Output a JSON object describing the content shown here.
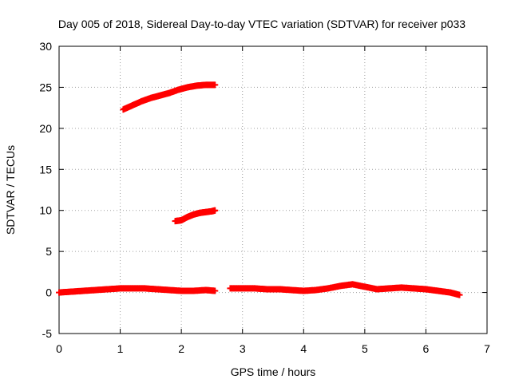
{
  "chart_data": {
    "type": "scatter",
    "title": "Day 005 of 2018, Sidereal Day-to-day VTEC variation (SDTVAR) for receiver p033",
    "xlabel": "GPS time / hours",
    "ylabel": "SDTVAR / TECUs",
    "xlim": [
      0,
      7
    ],
    "ylim": [
      -5,
      30
    ],
    "xticks": [
      "0",
      "1",
      "2",
      "3",
      "4",
      "5",
      "6",
      "7"
    ],
    "yticks": [
      "-5",
      "0",
      "5",
      "10",
      "15",
      "20",
      "25",
      "30"
    ],
    "grid": true,
    "legend": "none",
    "marker": "plus",
    "color": "#ff0000",
    "series": [
      {
        "x": [
          0.0,
          0.2,
          0.4,
          0.6,
          0.8,
          1.0,
          1.2,
          1.4,
          1.6,
          1.8,
          2.0,
          2.2,
          2.4,
          2.55
        ],
        "y": [
          0.0,
          0.1,
          0.2,
          0.3,
          0.4,
          0.5,
          0.5,
          0.5,
          0.4,
          0.3,
          0.2,
          0.2,
          0.3,
          0.2
        ]
      },
      {
        "x": [
          2.8,
          3.0,
          3.2,
          3.4,
          3.6,
          3.8,
          4.0,
          4.2,
          4.4,
          4.6,
          4.8,
          5.0,
          5.2,
          5.4,
          5.6,
          5.8,
          6.0,
          6.2,
          6.4,
          6.55
        ],
        "y": [
          0.5,
          0.5,
          0.5,
          0.4,
          0.4,
          0.3,
          0.2,
          0.3,
          0.5,
          0.8,
          1.0,
          0.7,
          0.4,
          0.5,
          0.6,
          0.5,
          0.4,
          0.2,
          0.0,
          -0.3
        ]
      },
      {
        "x": [
          1.05,
          1.2,
          1.35,
          1.5,
          1.65,
          1.8,
          1.95,
          2.1,
          2.25,
          2.4,
          2.55
        ],
        "y": [
          22.3,
          22.8,
          23.3,
          23.7,
          24.0,
          24.3,
          24.7,
          25.0,
          25.2,
          25.3,
          25.3
        ]
      },
      {
        "x": [
          1.9,
          2.0,
          2.1,
          2.2,
          2.3,
          2.4,
          2.5,
          2.55
        ],
        "y": [
          8.7,
          8.8,
          9.2,
          9.5,
          9.7,
          9.8,
          9.9,
          10.0
        ]
      }
    ]
  }
}
